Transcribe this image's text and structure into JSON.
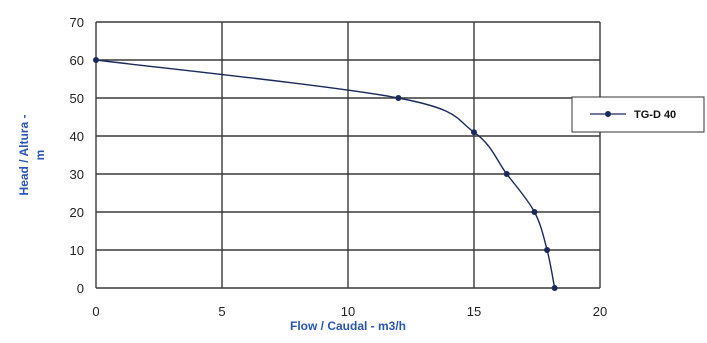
{
  "chart_data": {
    "type": "line",
    "xlabel": "Flow / Caudal -  m3/h",
    "ylabel_line1": "Head / Altura -",
    "ylabel_line2": "m",
    "xlim": [
      0,
      20
    ],
    "ylim": [
      0,
      70
    ],
    "x_ticks": [
      0,
      5,
      10,
      15,
      20
    ],
    "y_ticks": [
      0,
      10,
      20,
      30,
      40,
      50,
      60,
      70
    ],
    "grid": true,
    "legend_position": "right",
    "series": [
      {
        "name": "TG-D 40",
        "color": "#1a2a5a",
        "x": [
          0,
          12,
          15,
          16.3,
          17.4,
          17.9,
          18.2
        ],
        "y": [
          60,
          50,
          41,
          30,
          20,
          10,
          0
        ]
      }
    ]
  }
}
